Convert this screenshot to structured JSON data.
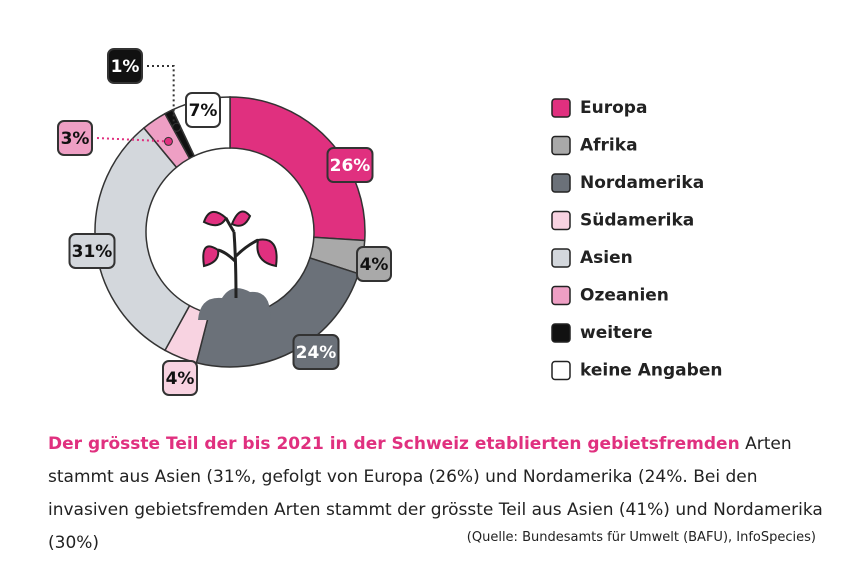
{
  "chart_data": {
    "type": "donut",
    "categories": [
      "Europa",
      "Afrika",
      "Nordamerika",
      "Südamerika",
      "Asien",
      "Ozeanien",
      "weitere",
      "keine Angaben"
    ],
    "values": [
      26,
      4,
      24,
      4,
      31,
      3,
      1,
      7
    ],
    "value_labels": [
      "26%",
      "4%",
      "24%",
      "4%",
      "31%",
      "3%",
      "1%",
      "7%"
    ],
    "colors": [
      "#e0307f",
      "#a9a9a9",
      "#6b7179",
      "#f8d3e1",
      "#d3d7dc",
      "#ee9fc4",
      "#111111",
      "#ffffff"
    ],
    "caption_highlight": "Der grösste Teil der bis 2021 in der Schweiz etablierten gebietsfremden",
    "caption": "Arten stammt aus Asien (31%, gefolgt von Europa (26%) und Nordamerika (24%. Bei den invasiven gebietsfremden Arten stammt der grösste Teil aus Asien (41%) und Nordamerika (30%)",
    "source": "(Quelle: Bundesamts für Umwelt (BAFU), InfoSpecies)"
  }
}
